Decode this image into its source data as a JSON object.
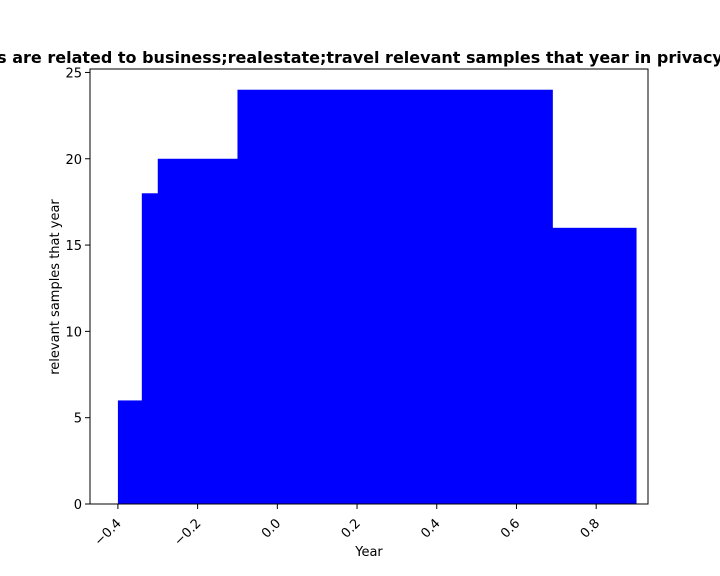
{
  "chart_data": {
    "type": "bar",
    "title": "s are related to business;realestate;travel relevant samples that year in privacy",
    "xlabel": "Year",
    "ylabel": "relevant samples that year",
    "xlim": [
      -0.47,
      0.93
    ],
    "ylim": [
      0,
      25.2
    ],
    "xticks": [
      -0.4,
      -0.2,
      0.0,
      0.2,
      0.4,
      0.6,
      0.8
    ],
    "xtick_labels": [
      "−0.4",
      "−0.2",
      "0.0",
      "0.2",
      "0.4",
      "0.6",
      "0.8"
    ],
    "yticks": [
      0,
      5,
      10,
      15,
      20,
      25
    ],
    "ytick_labels": [
      "0",
      "5",
      "10",
      "15",
      "20",
      "25"
    ],
    "grid": false,
    "bar_color": "#0000ff",
    "bars": [
      {
        "x0": -0.4,
        "x1": -0.34,
        "value": 6
      },
      {
        "x0": -0.34,
        "x1": -0.3,
        "value": 18
      },
      {
        "x0": -0.3,
        "x1": -0.1,
        "value": 20
      },
      {
        "x0": -0.1,
        "x1": 0.69,
        "value": 24
      },
      {
        "x0": 0.69,
        "x1": 0.9,
        "value": 16
      }
    ]
  }
}
